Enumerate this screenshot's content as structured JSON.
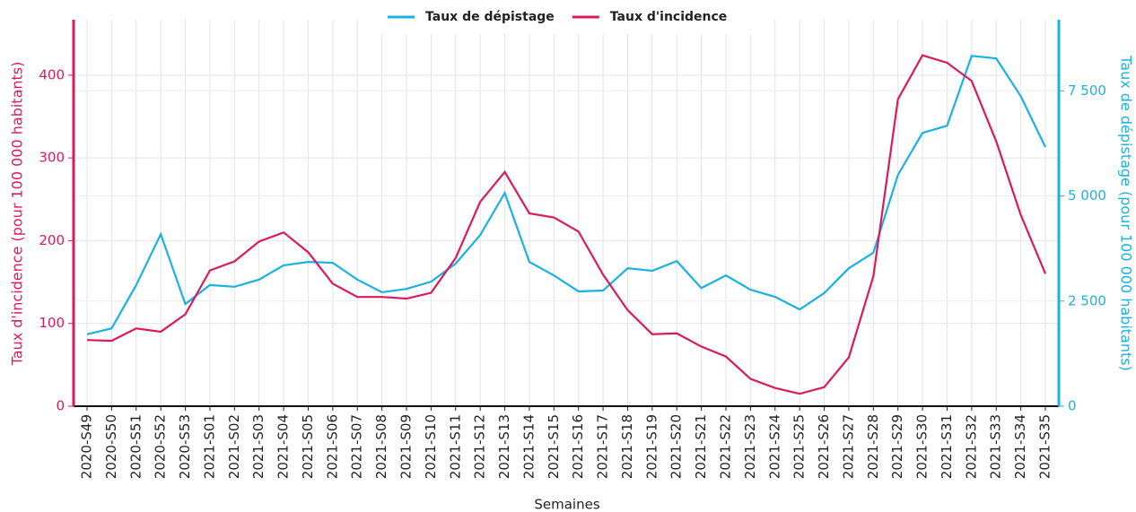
{
  "chart_data": {
    "type": "line",
    "x_label": "Semaines",
    "y_label": "Taux d'incidence (pour 100 000 habitants)",
    "y2_label": "Taux de dépistage (pour 100 000 habitants)",
    "categories": [
      "2020-S49",
      "2020-S50",
      "2020-S51",
      "2020-S52",
      "2020-S53",
      "2021-S01",
      "2021-S02",
      "2021-S03",
      "2021-S04",
      "2021-S05",
      "2021-S06",
      "2021-S07",
      "2021-S08",
      "2021-S09",
      "2021-S10",
      "2021-S11",
      "2021-S12",
      "2021-S13",
      "2021-S14",
      "2021-S15",
      "2021-S16",
      "2021-S17",
      "2021-S18",
      "2021-S19",
      "2021-S20",
      "2021-S21",
      "2021-S22",
      "2021-S23",
      "2021-S24",
      "2021-S25",
      "2021-S26",
      "2021-S27",
      "2021-S28",
      "2021-S29",
      "2021-S30",
      "2021-S31",
      "2021-S32",
      "2021-S33",
      "2021-S34",
      "2021-S35"
    ],
    "series": [
      {
        "name": "Taux de dépistage",
        "color": "#1ab2e0",
        "axis": "y2",
        "values": [
          1710,
          1850,
          2880,
          4090,
          2430,
          2880,
          2840,
          3010,
          3350,
          3430,
          3410,
          3010,
          2710,
          2790,
          2960,
          3390,
          4070,
          5070,
          3430,
          3110,
          2730,
          2750,
          3280,
          3220,
          3450,
          2810,
          3110,
          2770,
          2600,
          2300,
          2690,
          3280,
          3650,
          5500,
          6500,
          6670,
          8330,
          8270,
          7370,
          6160
        ]
      },
      {
        "name": "Taux d'incidence",
        "color": "#db1a5e",
        "axis": "y",
        "values": [
          80,
          79,
          94,
          90,
          111,
          164,
          175,
          199,
          210,
          186,
          148,
          132,
          132,
          130,
          137,
          179,
          247,
          283,
          233,
          228,
          211,
          159,
          116,
          87,
          88,
          72,
          60,
          33,
          22,
          15,
          23,
          59,
          157,
          371,
          424,
          415,
          393,
          320,
          231,
          160
        ]
      }
    ],
    "ylim": [
      0,
      467
    ],
    "yticks": [
      0,
      100,
      200,
      300,
      400
    ],
    "y2lim": [
      0,
      9190
    ],
    "y2ticks": [
      0,
      {
        "value": 2500,
        "label": "2 500"
      },
      {
        "value": 5000,
        "label": "5 000"
      },
      {
        "value": 7500,
        "label": "7 500"
      }
    ],
    "grid": true,
    "legend": "top"
  }
}
